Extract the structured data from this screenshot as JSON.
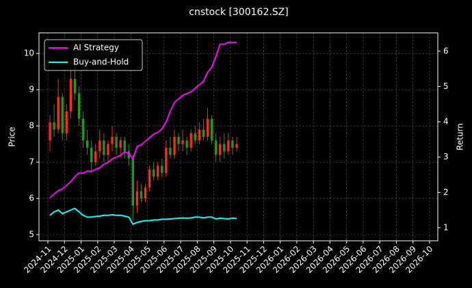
{
  "chart_data": {
    "type": "candlestick",
    "title": "cnstock [300162.SZ]",
    "y_label": "Price",
    "y2_label": "Return",
    "x": [
      "2024-11",
      "2024-11",
      "2024-11",
      "2024-11",
      "2024-12",
      "2024-12",
      "2024-12",
      "2024-12",
      "2025-01",
      "2025-01",
      "2025-01",
      "2025-01",
      "2025-02",
      "2025-02",
      "2025-02",
      "2025-02",
      "2025-03",
      "2025-03",
      "2025-03",
      "2025-03",
      "2025-04",
      "2025-04",
      "2025-04",
      "2025-04",
      "2025-05",
      "2025-05",
      "2025-05",
      "2025-05",
      "2025-06",
      "2025-06",
      "2025-06",
      "2025-06",
      "2025-07",
      "2025-07",
      "2025-07",
      "2025-07",
      "2025-08",
      "2025-08",
      "2025-08",
      "2025-08",
      "2025-09",
      "2025-09",
      "2025-09",
      "2025-09",
      "2025-10",
      "2025-10"
    ],
    "open": [
      7.6,
      8.1,
      7.9,
      8.8,
      7.8,
      8.4,
      9.3,
      8.9,
      8.2,
      7.6,
      7.4,
      7.0,
      7.3,
      7.6,
      7.2,
      7.5,
      7.7,
      7.4,
      7.6,
      7.3,
      7.1,
      5.8,
      6.2,
      6.0,
      6.3,
      6.8,
      6.6,
      6.9,
      6.7,
      7.4,
      7.2,
      7.7,
      7.5,
      7.6,
      7.4,
      7.8,
      7.6,
      7.9,
      7.7,
      8.2,
      7.6,
      7.2,
      7.5,
      7.3,
      7.6,
      7.4
    ],
    "high": [
      8.3,
      8.6,
      9.3,
      8.9,
      8.6,
      9.6,
      9.9,
      9.1,
      8.4,
      7.9,
      7.6,
      7.5,
      7.9,
      7.8,
      7.6,
      8.0,
      7.8,
      7.7,
      7.7,
      7.5,
      7.2,
      6.5,
      6.4,
      6.4,
      6.9,
      7.0,
      7.0,
      7.1,
      7.6,
      7.7,
      7.9,
      7.8,
      7.9,
      7.7,
      7.9,
      8.0,
      8.1,
      8.2,
      8.5,
      8.3,
      7.8,
      7.7,
      7.8,
      7.8,
      7.7,
      7.7
    ],
    "low": [
      7.3,
      7.7,
      7.8,
      7.6,
      7.6,
      8.2,
      8.7,
      8.0,
      7.4,
      7.2,
      6.7,
      6.9,
      7.1,
      7.0,
      7.0,
      7.3,
      7.2,
      7.2,
      7.1,
      6.9,
      5.4,
      5.6,
      5.9,
      5.9,
      6.2,
      6.5,
      6.5,
      6.6,
      6.6,
      7.1,
      7.1,
      7.3,
      7.3,
      7.2,
      7.3,
      7.5,
      7.5,
      7.6,
      7.6,
      7.5,
      7.0,
      7.0,
      7.1,
      7.2,
      7.2,
      7.3
    ],
    "close": [
      8.1,
      7.9,
      8.8,
      7.8,
      8.4,
      9.3,
      8.9,
      8.2,
      7.6,
      7.4,
      7.0,
      7.3,
      7.6,
      7.2,
      7.5,
      7.7,
      7.4,
      7.6,
      7.3,
      7.1,
      5.8,
      6.2,
      6.0,
      6.3,
      6.8,
      6.6,
      6.9,
      6.7,
      7.4,
      7.2,
      7.7,
      7.5,
      7.6,
      7.4,
      7.8,
      7.6,
      7.9,
      7.7,
      8.2,
      7.6,
      7.2,
      7.5,
      7.3,
      7.6,
      7.4,
      7.5
    ],
    "up_color": "#ff2a1a",
    "down_color": "#1f9a1f",
    "series": [
      {
        "name": "AI Strategy",
        "color": "#ff00ff",
        "axis": "y2",
        "values": [
          1.85,
          1.95,
          2.05,
          2.1,
          2.2,
          2.3,
          2.45,
          2.55,
          2.55,
          2.6,
          2.6,
          2.65,
          2.7,
          2.8,
          2.85,
          2.95,
          3.0,
          3.05,
          3.15,
          3.1,
          2.95,
          3.3,
          3.35,
          3.45,
          3.55,
          3.65,
          3.7,
          3.8,
          4.0,
          4.3,
          4.55,
          4.65,
          4.75,
          4.8,
          4.85,
          4.95,
          5.05,
          5.15,
          5.4,
          5.55,
          5.85,
          6.2,
          6.2,
          6.25,
          6.25,
          6.25
        ]
      },
      {
        "name": "Buy-and-Hold",
        "color": "#00ffff",
        "axis": "y2",
        "values": [
          1.35,
          1.45,
          1.5,
          1.4,
          1.45,
          1.5,
          1.55,
          1.45,
          1.35,
          1.3,
          1.3,
          1.32,
          1.33,
          1.35,
          1.35,
          1.37,
          1.35,
          1.35,
          1.33,
          1.3,
          1.1,
          1.15,
          1.18,
          1.2,
          1.2,
          1.22,
          1.22,
          1.24,
          1.24,
          1.25,
          1.26,
          1.27,
          1.28,
          1.27,
          1.28,
          1.3,
          1.3,
          1.28,
          1.3,
          1.3,
          1.25,
          1.27,
          1.26,
          1.25,
          1.27,
          1.26
        ]
      }
    ],
    "xticks": [
      "2024-11",
      "2024-12",
      "2025-01",
      "2025-02",
      "2025-03",
      "2025-04",
      "2025-05",
      "2025-06",
      "2025-07",
      "2025-08",
      "2025-09",
      "2025-10",
      "2025-11",
      "2025-12",
      "2026-01",
      "2026-02",
      "2026-03",
      "2026-04",
      "2026-05",
      "2026-06",
      "2026-07",
      "2026-08",
      "2026-09",
      "2026-10"
    ],
    "ylim": [
      4.83,
      10.57
    ],
    "yticks": [
      5,
      6,
      7,
      8,
      9,
      10
    ],
    "y2lim": [
      0.63,
      6.52
    ],
    "y2ticks": [
      1,
      2,
      3,
      4,
      5,
      6
    ],
    "grid": true,
    "legend": "upper left"
  }
}
